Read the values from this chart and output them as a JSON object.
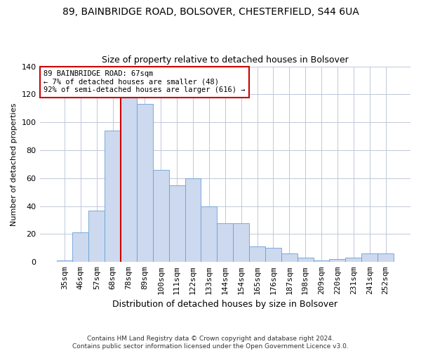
{
  "title_line1": "89, BAINBRIDGE ROAD, BOLSOVER, CHESTERFIELD, S44 6UA",
  "title_line2": "Size of property relative to detached houses in Bolsover",
  "xlabel": "Distribution of detached houses by size in Bolsover",
  "ylabel": "Number of detached properties",
  "categories": [
    "35sqm",
    "46sqm",
    "57sqm",
    "68sqm",
    "78sqm",
    "89sqm",
    "100sqm",
    "111sqm",
    "122sqm",
    "133sqm",
    "144sqm",
    "154sqm",
    "165sqm",
    "176sqm",
    "187sqm",
    "198sqm",
    "209sqm",
    "220sqm",
    "231sqm",
    "241sqm",
    "252sqm"
  ],
  "values": [
    1,
    21,
    37,
    94,
    118,
    113,
    66,
    55,
    60,
    40,
    28,
    28,
    11,
    10,
    6,
    3,
    1,
    2,
    3,
    6,
    6
  ],
  "bar_color": "#ccd9ee",
  "bar_edge_color": "#6a9fd8",
  "vline_x_index": 3.5,
  "vline_color": "#cc0000",
  "annotation_text": "89 BAINBRIDGE ROAD: 67sqm\n← 7% of detached houses are smaller (48)\n92% of semi-detached houses are larger (616) →",
  "annotation_box_color": "#cc0000",
  "ylim": [
    0,
    140
  ],
  "yticks": [
    0,
    20,
    40,
    60,
    80,
    100,
    120,
    140
  ],
  "footer_line1": "Contains HM Land Registry data © Crown copyright and database right 2024.",
  "footer_line2": "Contains public sector information licensed under the Open Government Licence v3.0.",
  "background_color": "#ffffff",
  "grid_color": "#c0c8d8",
  "title_fontsize": 10,
  "subtitle_fontsize": 9,
  "ylabel_fontsize": 8,
  "xlabel_fontsize": 9,
  "tick_fontsize": 8,
  "ann_fontsize": 7.5,
  "footer_fontsize": 6.5
}
